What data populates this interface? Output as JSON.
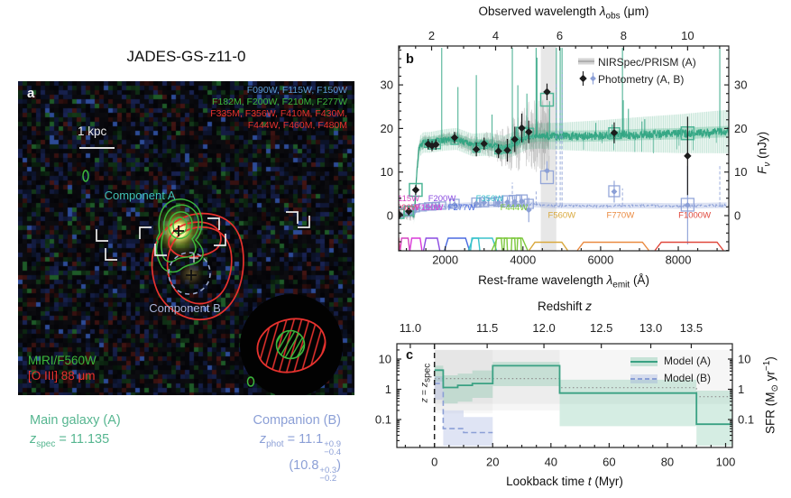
{
  "title": "JADES-GS-z11-0",
  "colors": {
    "teal": "#56b690",
    "tealLine": "#2fa482",
    "slate": "#8b9fd6",
    "gray": "#ababab",
    "black": "#1c1c1c",
    "green": "#3cb83c",
    "red": "#e8322e",
    "frame": "#222222"
  },
  "panel_a": {
    "letter": "a",
    "filters_blue": "F090W, F115W, F150W",
    "filters_green": "F182M, F200W, F210M, F277W",
    "filters_red1": "F335M, F356W, F410M, F430M,",
    "filters_red2": "F444W, F460M, F480M",
    "scalebar": "1 kpc",
    "component_a": "Component A",
    "component_b": "Component B",
    "miri": "MIRI/F560W",
    "oiii": "[O III] 88 μm"
  },
  "caption": {
    "main_label": "Main galaxy (A)",
    "main_z_sym": "z",
    "main_z_sub": "spec",
    "main_z_val": " = 11.135",
    "comp_label": "Companion (B)",
    "comp_z_sym": "z",
    "comp_z_sub": "phot",
    "comp_z_val": " = 11.1",
    "comp_sup": "+0.9",
    "comp_sub": "−0.4",
    "comp_paren_pre": "(10.8",
    "comp_paren_sup": "+0.3",
    "comp_paren_sub": "−0.2",
    "comp_paren_post": ")"
  },
  "panel_b": {
    "letter": "b",
    "legend": {
      "prism": "NIRSpec/PRISM (A)",
      "phot": "Photometry (A, B)"
    },
    "top_axis": {
      "pre": "Observed wavelength ",
      "sym": "λ",
      "sub": "obs",
      "post": " (μm)"
    },
    "bottom_axis": {
      "pre": "Rest-frame wavelength ",
      "sym": "λ",
      "sub": "emit",
      "post": " (Å)"
    },
    "right_axis": {
      "sym": "F",
      "sub": "ν",
      "post": " (nJy)"
    }
  },
  "panel_c": {
    "letter": "c",
    "legend": {
      "a": "Model (A)",
      "b": "Model (B)"
    },
    "top_axis": {
      "pre": "Redshift ",
      "sym": "z"
    },
    "bottom_axis": {
      "pre": "Lookback time ",
      "sym": "t",
      "post": " (Myr)"
    },
    "right_axis": {
      "pre": "SFR (M",
      "sub": "⊙",
      "mid": " yr",
      "sup": "−1",
      "post": ")"
    },
    "vline": {
      "sym1": "z",
      "eq": " = ",
      "sym2": "z",
      "sub": "spec"
    }
  },
  "chart_data": [
    {
      "type": "line",
      "panel": "b",
      "xlabel": "Rest-frame wavelength λ_emit (Å)",
      "xlabel_top": "Observed wavelength λ_obs (μm)",
      "ylabel": "F_ν (nJy)",
      "x_range": [
        800,
        9300
      ],
      "x_ticks": [
        2000,
        4000,
        6000,
        8000
      ],
      "x_ticks_top_um": [
        2,
        4,
        6,
        8,
        10
      ],
      "obs_to_rest_factor": 824.06,
      "y_range": [
        -8,
        39
      ],
      "y_ticks": [
        0,
        10,
        20,
        30
      ],
      "legend": [
        "NIRSpec/PRISM (A)",
        "Photometry (A, B)"
      ],
      "prism_range": [
        860,
        4680
      ],
      "prism_end_band": [
        4460,
        4860
      ],
      "prism_amp": [
        [
          860,
          1.2
        ],
        [
          1400,
          1.6
        ],
        [
          2200,
          1.8
        ],
        [
          3000,
          2.6
        ],
        [
          3400,
          4
        ],
        [
          3800,
          6.5
        ],
        [
          4200,
          8.5
        ],
        [
          4680,
          9.5
        ]
      ],
      "model_A": [
        [
          800,
          0.1
        ],
        [
          1205,
          0.2
        ],
        [
          1216,
          1
        ],
        [
          1260,
          9
        ],
        [
          1320,
          15.5
        ],
        [
          1420,
          16.8
        ],
        [
          1600,
          16.8
        ],
        [
          2000,
          17.4
        ],
        [
          2300,
          17.6
        ],
        [
          2700,
          16.2
        ],
        [
          3100,
          16.4
        ],
        [
          3500,
          15.6
        ],
        [
          3800,
          16.6
        ],
        [
          4100,
          18
        ],
        [
          4400,
          18.3
        ],
        [
          5000,
          18.2
        ],
        [
          6000,
          18.3
        ],
        [
          7000,
          18.6
        ],
        [
          8000,
          18.8
        ],
        [
          9300,
          19.3
        ]
      ],
      "model_B": [
        [
          800,
          0.25
        ],
        [
          1210,
          0.3
        ],
        [
          1230,
          1.2
        ],
        [
          1500,
          1.9
        ],
        [
          2000,
          2.1
        ],
        [
          2600,
          2.4
        ],
        [
          3200,
          2.5
        ],
        [
          3800,
          2.6
        ],
        [
          4200,
          2.6
        ],
        [
          4800,
          2.3
        ],
        [
          6000,
          2.2
        ],
        [
          7000,
          2.3
        ],
        [
          8000,
          2.2
        ],
        [
          9300,
          2.4
        ]
      ],
      "band_A_width": [
        [
          1150,
          2.3
        ],
        [
          4400,
          2.9
        ],
        [
          6500,
          3.8
        ],
        [
          9300,
          5
        ]
      ],
      "emission_A": [
        [
          1909,
          26
        ],
        [
          2326,
          12
        ],
        [
          2800,
          16
        ],
        [
          3204,
          7
        ],
        [
          3727,
          30
        ],
        [
          3869,
          13
        ],
        [
          4102,
          10
        ],
        [
          4340,
          28
        ],
        [
          4363,
          18
        ],
        [
          4686,
          8
        ],
        [
          4861,
          32
        ],
        [
          4959,
          26
        ],
        [
          5007,
          34
        ],
        [
          5876,
          3
        ],
        [
          6300,
          2.5
        ],
        [
          6563,
          28
        ],
        [
          6584,
          8
        ],
        [
          6716,
          6
        ],
        [
          7065,
          3
        ],
        [
          7136,
          3.5
        ],
        [
          9069,
          20
        ]
      ],
      "emission_B": [
        [
          3727,
          5
        ],
        [
          4340,
          3
        ],
        [
          4861,
          28
        ],
        [
          4959,
          22
        ],
        [
          5007,
          31
        ],
        [
          6563,
          4
        ],
        [
          9069,
          9
        ]
      ],
      "photometry_A": [
        [
          820,
          0.2,
          1.0
        ],
        [
          1060,
          1.0,
          1.0
        ],
        [
          1240,
          5.9,
          1.1
        ],
        [
          1560,
          16.4,
          1.2
        ],
        [
          1660,
          16.0,
          1.2
        ],
        [
          1760,
          16.3,
          1.2
        ],
        [
          2240,
          17.9,
          1.3
        ],
        [
          2800,
          15.2,
          1.6
        ],
        [
          3000,
          16.5,
          1.4
        ],
        [
          3370,
          14.8,
          1.6
        ],
        [
          3600,
          15.0,
          2.6
        ],
        [
          3790,
          17.5,
          2.9
        ],
        [
          3970,
          20.1,
          3.3
        ],
        [
          4150,
          19.2,
          2.6
        ],
        [
          4620,
          28.4,
          1.9
        ],
        [
          6350,
          19.0,
          2.4
        ],
        [
          8240,
          13.7,
          9.0
        ]
      ],
      "photometry_B": [
        [
          820,
          0.1,
          0.9
        ],
        [
          1060,
          0.6,
          0.9
        ],
        [
          1240,
          1.5,
          0.9
        ],
        [
          1560,
          2.0,
          0.9
        ],
        [
          1760,
          2.1,
          0.9
        ],
        [
          2240,
          2.5,
          1.0
        ],
        [
          2800,
          2.8,
          1.0
        ],
        [
          3000,
          3.0,
          1.0
        ],
        [
          3370,
          3.0,
          1.1
        ],
        [
          3600,
          3.1,
          1.2
        ],
        [
          3790,
          3.2,
          1.3
        ],
        [
          3970,
          3.3,
          1.4
        ],
        [
          4150,
          1.3,
          2.8
        ],
        [
          4620,
          10.3,
          2.2
        ],
        [
          6350,
          5.5,
          2.5
        ],
        [
          8240,
          2.4,
          9.0
        ]
      ],
      "model_phot_A": [
        [
          820,
          0.4,
          5
        ],
        [
          1060,
          1.1,
          5
        ],
        [
          1240,
          5.9,
          7
        ],
        [
          1560,
          16.5,
          4
        ],
        [
          1660,
          16.1,
          4
        ],
        [
          1760,
          16.4,
          5
        ],
        [
          2240,
          17.2,
          4
        ],
        [
          2800,
          15.4,
          4
        ],
        [
          3000,
          16.3,
          4
        ],
        [
          3370,
          15.0,
          4
        ],
        [
          3600,
          15.2,
          4
        ],
        [
          3790,
          17.1,
          4
        ],
        [
          3970,
          19.0,
          6
        ],
        [
          4150,
          19.0,
          5
        ],
        [
          4620,
          26.6,
          7
        ],
        [
          6350,
          18.9,
          6
        ],
        [
          8240,
          18.9,
          7
        ]
      ],
      "model_phot_B": [
        [
          820,
          0.7,
          5
        ],
        [
          1060,
          1.2,
          5
        ],
        [
          1240,
          1.7,
          4
        ],
        [
          1420,
          1.9,
          4
        ],
        [
          1560,
          2.1,
          4
        ],
        [
          1660,
          2.1,
          4
        ],
        [
          1760,
          2.2,
          4
        ],
        [
          1920,
          2.3,
          4
        ],
        [
          2240,
          2.7,
          5
        ],
        [
          2800,
          3.0,
          5
        ],
        [
          3000,
          3.1,
          5
        ],
        [
          3200,
          3.2,
          4
        ],
        [
          3370,
          3.2,
          5
        ],
        [
          3600,
          3.3,
          6
        ],
        [
          3790,
          3.4,
          6
        ],
        [
          3970,
          3.5,
          6
        ],
        [
          4150,
          2.7,
          5
        ],
        [
          4620,
          8.8,
          7
        ],
        [
          6350,
          5.6,
          6
        ],
        [
          8240,
          2.5,
          7
        ]
      ],
      "filters": [
        {
          "name": "F090W",
          "color": "#e8457e",
          "lo": 650,
          "hi": 830,
          "lx": 975,
          "row": 2
        },
        {
          "name": "F115W",
          "color": "#d644c0",
          "lo": 840,
          "hi": 1080,
          "lx": 990,
          "row": 1
        },
        {
          "name": "F150W",
          "color": "#d93ad9",
          "lo": 1090,
          "hi": 1400,
          "lx": 1590,
          "row": 2
        },
        {
          "name": "F200W",
          "color": "#8a4ae0",
          "lo": 1440,
          "hi": 1860,
          "lx": 1915,
          "row": 1
        },
        {
          "name": "F277W",
          "color": "#4a6ae0",
          "lo": 1980,
          "hi": 2620,
          "lx": 2425,
          "row": 2
        },
        {
          "name": "F356W",
          "color": "#3ac2cc",
          "lo": 2600,
          "hi": 3320,
          "lx": 3145,
          "row": 1
        },
        {
          "name": "F444W",
          "color": "#7cc83c",
          "lo": 3200,
          "hi": 4120,
          "lx": 3770,
          "row": 2
        },
        {
          "name": "F560W",
          "color": "#d9a83c",
          "lo": 4160,
          "hi": 5150,
          "lx": 5000,
          "row": 3
        },
        {
          "name": "F770W",
          "color": "#ea8a40",
          "lo": 5400,
          "hi": 7240,
          "lx": 6510,
          "row": 3
        },
        {
          "name": "F1000W",
          "color": "#e0483c",
          "lo": 7400,
          "hi": 9160,
          "lx": 8420,
          "row": 3
        },
        {
          "name": "",
          "color": "#3ac2cc",
          "lo": 2650,
          "hi": 2890,
          "row": 2
        },
        {
          "name": "",
          "color": "#7cc83c",
          "lo": 3290,
          "hi": 3470,
          "row": 2
        },
        {
          "name": "",
          "color": "#7cc83c",
          "lo": 3510,
          "hi": 3600,
          "row": 2
        },
        {
          "name": "",
          "color": "#7cc83c",
          "lo": 3700,
          "hi": 3805,
          "row": 2
        },
        {
          "name": "",
          "color": "#7cc83c",
          "lo": 3850,
          "hi": 3960,
          "row": 2
        }
      ]
    },
    {
      "type": "line",
      "panel": "c",
      "xlabel": "Lookback time t (Myr)",
      "xlabel_top": "Redshift z",
      "ylabel": "SFR (M⊙ yr⁻¹)",
      "x_range": [
        -12.9,
        102.3
      ],
      "x_ticks": [
        0,
        20,
        40,
        60,
        80,
        100
      ],
      "y_scale": "log",
      "y_range": [
        0.013,
        30
      ],
      "y_ticks": [
        10,
        1,
        0.1
      ],
      "redshift_ticks": [
        {
          "label": "11.0",
          "t": -8.3
        },
        {
          "label": "11.5",
          "t": 18.1
        },
        {
          "label": "12.0",
          "t": 37.6
        },
        {
          "label": "12.5",
          "t": 57.3
        },
        {
          "label": "13.0",
          "t": 74.3
        },
        {
          "label": "13.5",
          "t": 88.2
        }
      ],
      "legend": [
        "Model (A)",
        "Model (B)"
      ],
      "vline_t": 0,
      "model_A_steps": [
        [
          0,
          4.3
        ],
        [
          3,
          1.15
        ],
        [
          8,
          1.35
        ],
        [
          13,
          1.55
        ],
        [
          20,
          6.0
        ],
        [
          43,
          0.75
        ],
        [
          90,
          0.07
        ],
        [
          103,
          0.07
        ]
      ],
      "band_A": [
        [
          0,
          6,
          1.8
        ],
        [
          3,
          2.9,
          0.34
        ],
        [
          8,
          3.3,
          0.39
        ],
        [
          13,
          4.2,
          0.52
        ],
        [
          20,
          8.1,
          1.27
        ],
        [
          43,
          2.07,
          0.06
        ],
        [
          90,
          0.9,
          0.012
        ],
        [
          103,
          0.9,
          0.012
        ]
      ],
      "model_B_steps": [
        [
          0,
          1.55
        ],
        [
          3,
          0.05
        ],
        [
          10,
          0.037
        ],
        [
          20,
          0.037
        ]
      ],
      "band_B": [
        [
          0,
          2.7,
          0.45
        ],
        [
          3,
          0.2,
          0.012
        ],
        [
          10,
          0.12,
          0.012
        ],
        [
          20,
          0.12,
          0.012
        ]
      ],
      "dotted_steps": [
        [
          0,
          2.26
        ],
        [
          43,
          1.13
        ],
        [
          90,
          0.57
        ],
        [
          103,
          0.57
        ]
      ],
      "gray_bands": [
        {
          "t": [
            0,
            103
          ],
          "hi": 20,
          "lo": 0.33,
          "op": 0.05
        },
        {
          "t": [
            0,
            43
          ],
          "hi": 20,
          "lo": 0.2,
          "op": 0.05
        },
        {
          "t": [
            0,
            20
          ],
          "hi": 20,
          "lo": 0.16,
          "op": 0.04
        }
      ]
    }
  ]
}
